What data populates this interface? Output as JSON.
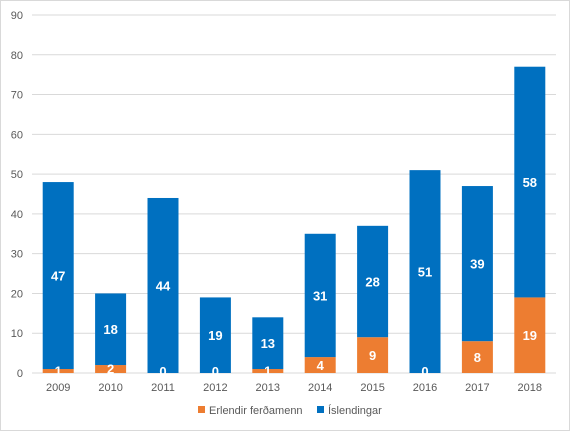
{
  "chart_data": {
    "type": "bar",
    "stacked": true,
    "categories": [
      "2009",
      "2010",
      "2011",
      "2012",
      "2013",
      "2014",
      "2015",
      "2016",
      "2017",
      "2018"
    ],
    "series": [
      {
        "name": "Erlendir ferðamenn",
        "color": "#ed7d31",
        "values": [
          1,
          2,
          0,
          0,
          1,
          4,
          9,
          0,
          8,
          19
        ]
      },
      {
        "name": "Íslendingar",
        "color": "#0070c0",
        "values": [
          47,
          18,
          44,
          19,
          13,
          31,
          28,
          51,
          39,
          58
        ]
      }
    ],
    "ylim": [
      0,
      90
    ],
    "yticks": [
      "0",
      "10",
      "20",
      "30",
      "40",
      "50",
      "60",
      "70",
      "80",
      "90"
    ],
    "grid": true,
    "legend_position": "bottom",
    "gridline_color": "#d9d9d9"
  }
}
